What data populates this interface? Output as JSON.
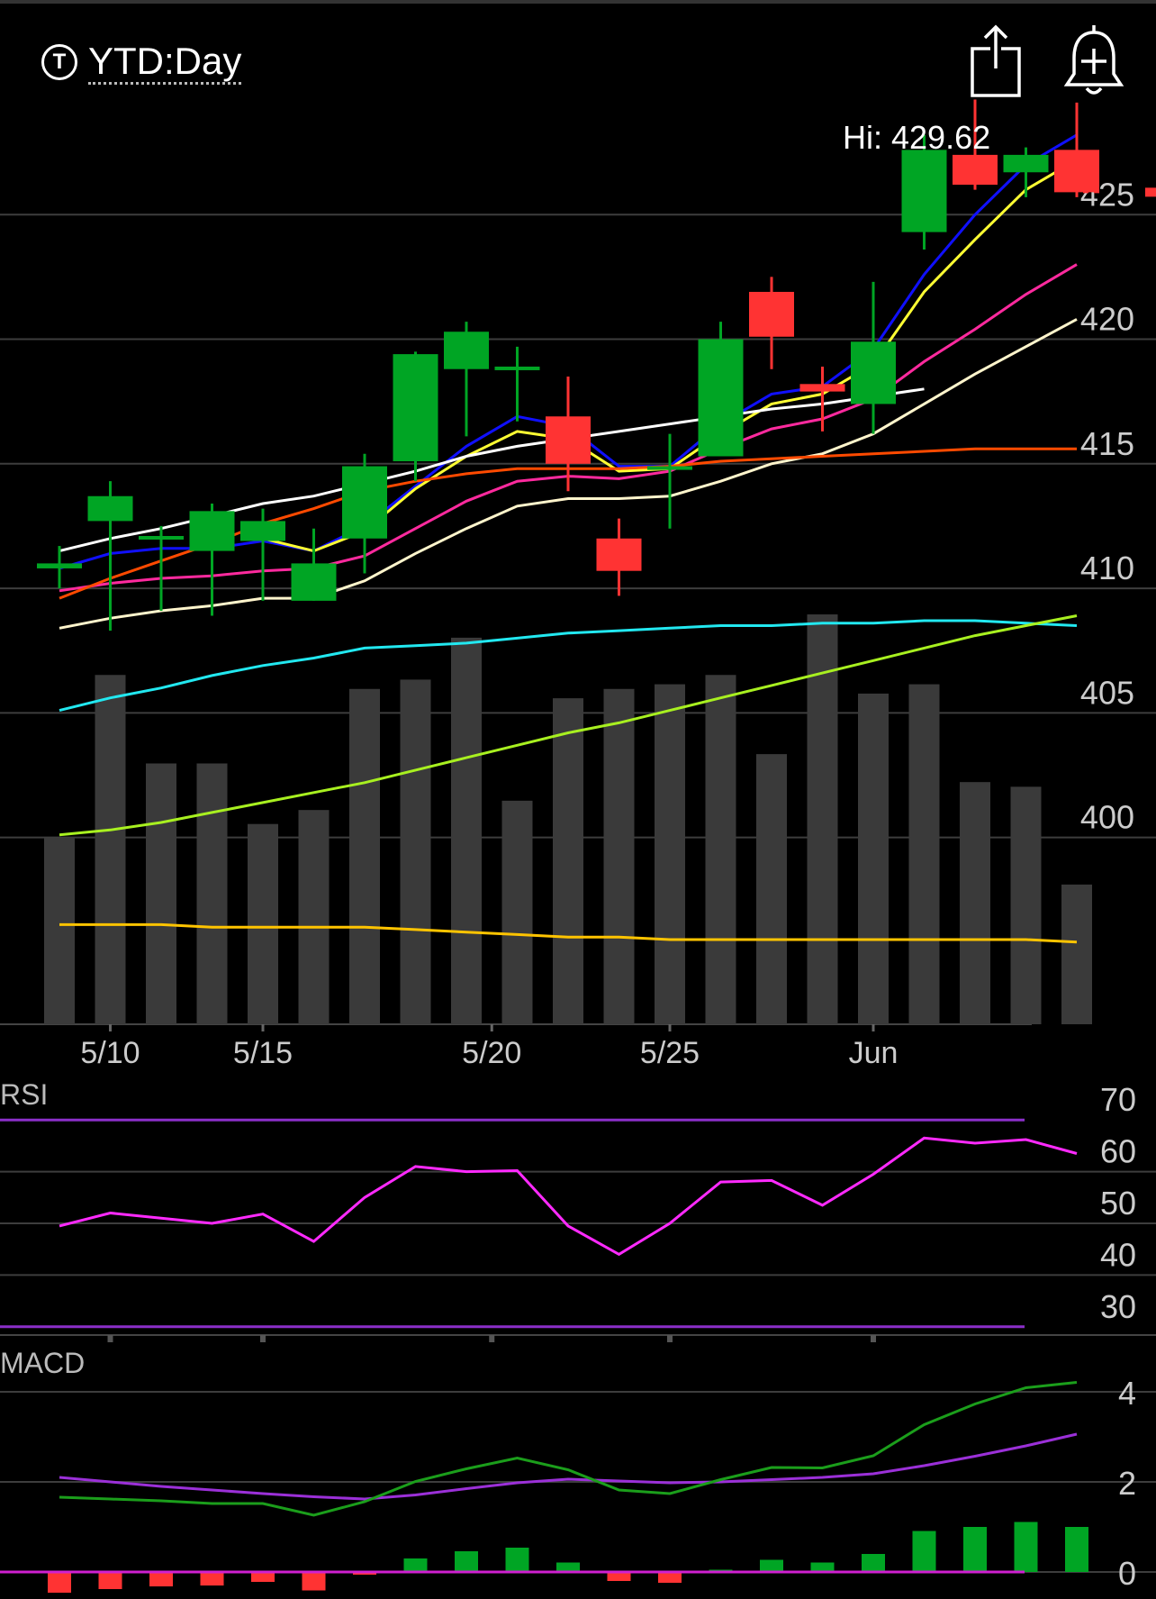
{
  "header": {
    "period_label": "YTD:Day",
    "ticker_icon": "T",
    "share_icon": "share-icon",
    "alert_icon": "bell-plus-icon"
  },
  "hi_label": "Hi: 429.62",
  "colors": {
    "up": "#00a524",
    "down": "#ff3333",
    "volume": "#3a3a3a",
    "ma_blue": "#1010ff",
    "ma_yellow": "#ffff33",
    "ma_magenta": "#ff2a9e",
    "ma_cream": "#fff5cc",
    "ma_white": "#ffffff",
    "ma_orange": "#ff4a00",
    "ma_cyan": "#22e8f0",
    "ma_lime": "#a8f020",
    "ma_gold": "#ffc400",
    "rsi_line": "#ff2aff",
    "rsi_band": "#8b2fc9",
    "macd_line": "#1b9e1b",
    "signal_line": "#9b30d8",
    "macd_zero": "#d020d0"
  },
  "chart_data": [
    {
      "type": "candlestick",
      "title": "",
      "date_ticks": [
        {
          "label": "5/10",
          "x": 1
        },
        {
          "label": "5/15",
          "x": 4
        },
        {
          "label": "5/20",
          "x": 8.5
        },
        {
          "label": "5/25",
          "x": 12
        },
        {
          "label": "Jun",
          "x": 16
        }
      ],
      "y_ticks": [
        425,
        420,
        415,
        410,
        405,
        400
      ],
      "ylim": [
        392.5,
        430
      ],
      "candles": [
        {
          "x": 0,
          "open": 410.8,
          "high": 411.7,
          "low": 410.0,
          "close": 411.0
        },
        {
          "x": 1,
          "open": 412.7,
          "high": 414.3,
          "low": 408.3,
          "close": 413.7
        },
        {
          "x": 2,
          "open": 412.0,
          "high": 412.5,
          "low": 409.1,
          "close": 412.1
        },
        {
          "x": 3,
          "open": 411.5,
          "high": 413.4,
          "low": 408.9,
          "close": 413.1
        },
        {
          "x": 4,
          "open": 411.9,
          "high": 413.2,
          "low": 409.5,
          "close": 412.7
        },
        {
          "x": 5,
          "open": 409.5,
          "high": 412.4,
          "low": 409.5,
          "close": 411.0
        },
        {
          "x": 6,
          "open": 412.0,
          "high": 415.4,
          "low": 410.6,
          "close": 414.9
        },
        {
          "x": 7,
          "open": 415.1,
          "high": 419.5,
          "low": 414.3,
          "close": 419.4
        },
        {
          "x": 8,
          "open": 418.8,
          "high": 420.7,
          "low": 416.1,
          "close": 420.3
        },
        {
          "x": 9,
          "open": 418.8,
          "high": 419.7,
          "low": 416.7,
          "close": 418.9
        },
        {
          "x": 10,
          "open": 416.9,
          "high": 418.5,
          "low": 413.9,
          "close": 415.0
        },
        {
          "x": 11,
          "open": 412.0,
          "high": 412.8,
          "low": 409.7,
          "close": 410.7
        },
        {
          "x": 12,
          "open": 414.9,
          "high": 416.2,
          "low": 412.4,
          "close": 414.9
        },
        {
          "x": 13,
          "open": 415.3,
          "high": 420.7,
          "low": 415.3,
          "close": 420.0
        },
        {
          "x": 14,
          "open": 421.9,
          "high": 422.5,
          "low": 418.8,
          "close": 420.1
        },
        {
          "x": 15,
          "open": 418.2,
          "high": 418.9,
          "low": 416.3,
          "close": 417.9
        },
        {
          "x": 16,
          "open": 417.4,
          "high": 422.3,
          "low": 416.2,
          "close": 419.9
        },
        {
          "x": 17,
          "open": 424.3,
          "high": 428.2,
          "low": 423.6,
          "close": 427.6
        },
        {
          "x": 18,
          "open": 427.4,
          "high": 429.62,
          "low": 426.0,
          "close": 426.2
        },
        {
          "x": 19,
          "open": 426.7,
          "high": 427.7,
          "low": 425.7,
          "close": 427.4
        },
        {
          "x": 20,
          "open": 427.6,
          "high": 429.5,
          "low": 425.7,
          "close": 425.9
        }
      ],
      "last_price": 425.9,
      "volume_fraction": [
        0.4,
        0.75,
        0.56,
        0.56,
        0.43,
        0.46,
        0.72,
        0.74,
        0.83,
        0.48,
        0.7,
        0.72,
        0.73,
        0.75,
        0.58,
        0.88,
        0.71,
        0.73,
        0.52,
        0.51,
        0.3
      ],
      "moving_averages": [
        {
          "color_key": "ma_blue",
          "values": [
            410.8,
            411.4,
            411.6,
            411.6,
            411.9,
            411.5,
            412.5,
            414.1,
            415.7,
            416.9,
            416.5,
            414.9,
            414.9,
            416.6,
            417.8,
            418.1,
            419.6,
            422.6,
            425.0,
            427.0,
            428.2
          ]
        },
        {
          "color_key": "ma_yellow",
          "values": [
            null,
            null,
            null,
            null,
            412.0,
            411.5,
            412.3,
            414.0,
            415.3,
            416.3,
            416.0,
            414.7,
            414.8,
            416.2,
            417.4,
            417.8,
            419.0,
            421.9,
            424.0,
            426.0,
            427.2
          ]
        },
        {
          "color_key": "ma_magenta",
          "values": [
            409.9,
            410.2,
            410.4,
            410.5,
            410.7,
            410.8,
            411.3,
            412.4,
            413.5,
            414.3,
            414.5,
            414.4,
            414.7,
            415.6,
            416.4,
            416.8,
            417.6,
            419.1,
            420.4,
            421.8,
            423.0
          ]
        },
        {
          "color_key": "ma_cream",
          "values": [
            408.4,
            408.8,
            409.1,
            409.3,
            409.6,
            409.6,
            410.3,
            411.4,
            412.4,
            413.3,
            413.6,
            413.6,
            413.7,
            414.3,
            415.0,
            415.4,
            416.2,
            417.4,
            418.6,
            419.7,
            420.8
          ]
        },
        {
          "color_key": "ma_white",
          "values": [
            411.5,
            412.0,
            412.4,
            412.9,
            413.4,
            413.7,
            414.2,
            414.7,
            415.3,
            415.7,
            416.0,
            416.3,
            416.6,
            416.9,
            417.2,
            417.4,
            417.7,
            418.0,
            null,
            null,
            null
          ]
        },
        {
          "color_key": "ma_orange",
          "values": [
            409.6,
            410.4,
            411.1,
            411.8,
            412.6,
            413.2,
            413.9,
            414.3,
            414.6,
            414.8,
            414.8,
            414.8,
            414.9,
            415.1,
            415.2,
            415.3,
            415.4,
            415.5,
            415.6,
            415.6,
            415.6
          ]
        },
        {
          "color_key": "ma_cyan",
          "values": [
            405.1,
            405.6,
            406.0,
            406.5,
            406.9,
            407.2,
            407.6,
            407.7,
            407.8,
            408.0,
            408.2,
            408.3,
            408.4,
            408.5,
            408.5,
            408.6,
            408.6,
            408.7,
            408.7,
            408.6,
            408.5
          ]
        },
        {
          "color_key": "ma_lime",
          "values": [
            400.1,
            400.3,
            400.6,
            401.0,
            401.4,
            401.8,
            402.2,
            402.7,
            403.2,
            403.7,
            404.2,
            404.6,
            405.1,
            405.6,
            406.1,
            406.6,
            407.1,
            407.6,
            408.1,
            408.5,
            408.9
          ]
        },
        {
          "color_key": "ma_gold",
          "values": [
            396.5,
            396.5,
            396.5,
            396.4,
            396.4,
            396.4,
            396.4,
            396.3,
            396.2,
            396.1,
            396.0,
            396.0,
            395.9,
            395.9,
            395.9,
            395.9,
            395.9,
            395.9,
            395.9,
            395.9,
            395.8
          ]
        }
      ]
    },
    {
      "type": "line",
      "title": "RSI",
      "y_ticks": [
        70,
        60,
        50,
        40,
        30
      ],
      "ylim": [
        27,
        73
      ],
      "bands": [
        70,
        30
      ],
      "values": [
        49.5,
        52.0,
        51.0,
        50.0,
        51.8,
        46.5,
        55.0,
        61.0,
        60.0,
        60.2,
        49.5,
        44.0,
        50.0,
        58.0,
        58.3,
        53.5,
        59.5,
        66.5,
        65.5,
        66.2,
        63.5
      ]
    },
    {
      "type": "bar",
      "title": "MACD",
      "y_ticks": [
        4,
        2,
        0
      ],
      "ylim": [
        -0.6,
        4.6
      ],
      "macd": [
        1.66,
        1.62,
        1.58,
        1.52,
        1.52,
        1.26,
        1.56,
        2.01,
        2.29,
        2.53,
        2.27,
        1.82,
        1.74,
        2.05,
        2.32,
        2.31,
        2.58,
        3.27,
        3.73,
        4.09,
        4.21
      ],
      "signal": [
        2.1,
        2.0,
        1.9,
        1.82,
        1.74,
        1.67,
        1.62,
        1.71,
        1.85,
        1.98,
        2.06,
        2.02,
        1.98,
        2.0,
        2.05,
        2.1,
        2.18,
        2.36,
        2.57,
        2.8,
        3.06
      ],
      "histogram": [
        -0.46,
        -0.38,
        -0.32,
        -0.3,
        -0.22,
        -0.41,
        -0.06,
        0.3,
        0.46,
        0.54,
        0.21,
        -0.2,
        -0.24,
        0.05,
        0.27,
        0.21,
        0.4,
        0.91,
        1.0,
        1.11,
        1.0
      ]
    }
  ]
}
